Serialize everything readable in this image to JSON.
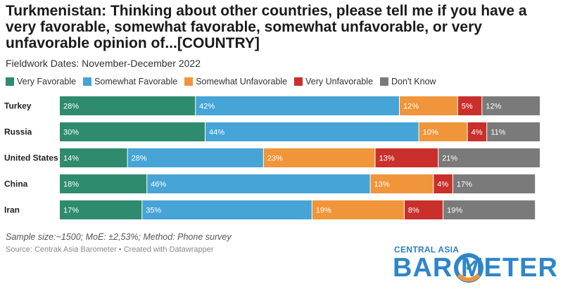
{
  "title": "Turkmenistan: Thinking about other countries, please tell me if you have a very favorable, somewhat favorable, somewhat unfavorable, or very unfavorable opinion of...[COUNTRY]",
  "subtitle": "Fieldwork Dates: November-December 2022",
  "note": "Sample size:~1500; MoE: ±2,53%; Method: Phone survey",
  "source": "Source: Centrak Asia Barometer • Created with Datawrapper",
  "logo": {
    "top": "CENTRAL ASIA",
    "main": "BAR   METER"
  },
  "chart_data": {
    "type": "bar",
    "orientation": "horizontal-stacked",
    "categories": [
      "Turkey",
      "Russia",
      "United States",
      "China",
      "Iran"
    ],
    "series": [
      {
        "name": "Very Favorable",
        "color": "#2e8b6e",
        "values": [
          28,
          30,
          14,
          18,
          17
        ]
      },
      {
        "name": "Somewhat Favorable",
        "color": "#46a4d6",
        "values": [
          42,
          44,
          28,
          46,
          35
        ]
      },
      {
        "name": "Somewhat Unfavorable",
        "color": "#f0953a",
        "values": [
          12,
          10,
          23,
          13,
          19
        ]
      },
      {
        "name": "Very Unfavorable",
        "color": "#c9302c",
        "values": [
          5,
          4,
          13,
          4,
          8
        ]
      },
      {
        "name": "Don't Know",
        "color": "#7a7a7a",
        "values": [
          12,
          11,
          21,
          17,
          19
        ]
      }
    ],
    "value_suffix": "%",
    "legend": "top-left"
  }
}
